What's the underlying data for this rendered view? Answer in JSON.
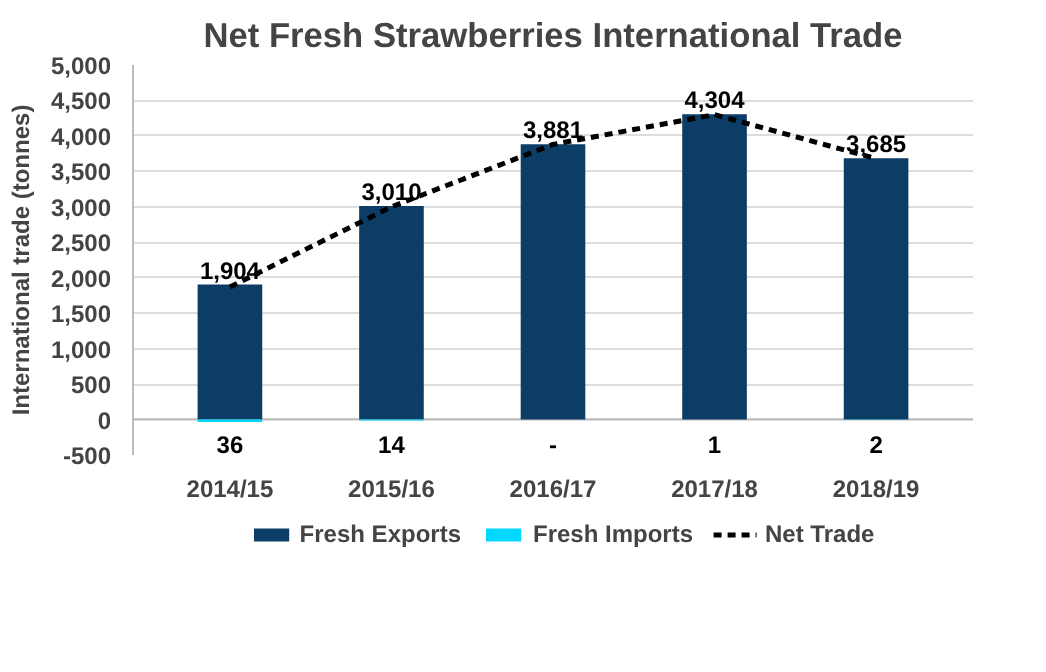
{
  "chart_data": {
    "type": "bar",
    "title": "Net Fresh Strawberries International Trade",
    "ylabel": "International trade (tonnes)",
    "categories": [
      "2014/15",
      "2015/16",
      "2016/17",
      "2017/18",
      "2018/19"
    ],
    "series": [
      {
        "name": "Fresh Exports",
        "color": "#0b3d66",
        "values": [
          1904,
          3010,
          3881,
          4304,
          3685
        ],
        "value_labels": [
          "1,904",
          "3,010",
          "3,881",
          "4,304",
          "3,685"
        ]
      },
      {
        "name": "Fresh Imports",
        "color": "#00d8ff",
        "values": [
          36,
          14,
          0,
          1,
          2
        ],
        "base": [
          -36,
          -14,
          null,
          -1,
          -2
        ],
        "value_labels": [
          "36",
          "14",
          "-",
          "1",
          "2"
        ]
      },
      {
        "name": "Net Trade",
        "type": "line",
        "color": "#000000",
        "line_style": "dashed",
        "values": [
          1870,
          3000,
          3880,
          4300,
          3680
        ]
      }
    ],
    "ylim": [
      -500,
      5000
    ],
    "yticks": [
      {
        "value": -500,
        "label": "-500"
      },
      {
        "value": 0,
        "label": "0"
      },
      {
        "value": 500,
        "label": "500"
      },
      {
        "value": 1000,
        "label": "1,000"
      },
      {
        "value": 1500,
        "label": "1,500"
      },
      {
        "value": 2000,
        "label": "2,000"
      },
      {
        "value": 2500,
        "label": "2,500"
      },
      {
        "value": 3000,
        "label": "3,000"
      },
      {
        "value": 3500,
        "label": "3,500"
      },
      {
        "value": 4000,
        "label": "4,000"
      },
      {
        "value": 4500,
        "label": "4,500"
      },
      {
        "value": 5000,
        "label": "5,000"
      }
    ],
    "grid": "y",
    "legend": "bottom"
  }
}
